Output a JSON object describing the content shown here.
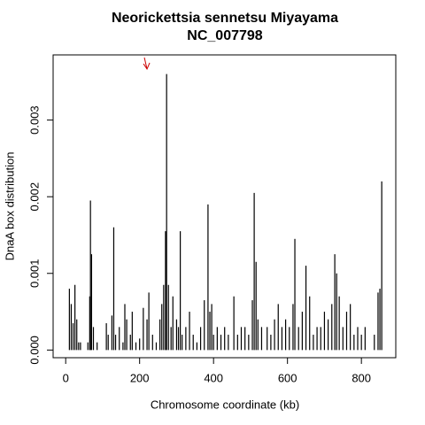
{
  "chart_data": {
    "type": "spike",
    "title": "Neorickettsia sennetsu Miyayama",
    "subtitle": "NC_007798",
    "x_label": "Chromosome coordinate (kb)",
    "y_label": "DnaA box distribution",
    "color": "#000000",
    "xlim": [
      -34,
      893
    ],
    "ylim": [
      -0.0001,
      0.00385
    ],
    "xticks": [
      0,
      200,
      400,
      600,
      800
    ],
    "yticks": [
      {
        "value": 0,
        "label": "0.000"
      },
      {
        "value": 0.001,
        "label": "0.001"
      },
      {
        "value": 0.002,
        "label": "0.002"
      },
      {
        "value": 0.003,
        "label": "0.003"
      }
    ],
    "annotations": [
      {
        "x": 220,
        "y": 0.0037,
        "color": "#cc0000"
      }
    ],
    "x": [
      10,
      15,
      20,
      25,
      30,
      35,
      40,
      60,
      65,
      67,
      70,
      75,
      85,
      110,
      115,
      125,
      130,
      135,
      145,
      155,
      160,
      165,
      175,
      180,
      190,
      200,
      210,
      220,
      225,
      235,
      245,
      255,
      260,
      265,
      270,
      273,
      278,
      285,
      290,
      300,
      305,
      310,
      315,
      325,
      335,
      345,
      355,
      365,
      375,
      385,
      390,
      395,
      400,
      410,
      420,
      430,
      440,
      455,
      465,
      475,
      485,
      495,
      505,
      510,
      515,
      520,
      530,
      545,
      555,
      565,
      575,
      585,
      595,
      605,
      615,
      620,
      630,
      640,
      650,
      660,
      670,
      680,
      690,
      700,
      710,
      720,
      728,
      733,
      740,
      750,
      760,
      770,
      780,
      790,
      800,
      810,
      835,
      845,
      850,
      855
    ],
    "values": [
      0.0008,
      0.0006,
      0.00035,
      0.00085,
      0.0004,
      0.0001,
      0.0001,
      0.0001,
      0.0007,
      0.00195,
      0.00125,
      0.0003,
      0.0001,
      0.00035,
      0.0002,
      0.00045,
      0.0016,
      0.0002,
      0.0003,
      0.0001,
      0.0006,
      0.0004,
      0.0002,
      0.0005,
      0.0001,
      0.00015,
      0.00055,
      0.0004,
      0.00075,
      0.0002,
      0.0001,
      0.0004,
      0.0006,
      0.00085,
      0.00155,
      0.0036,
      0.00085,
      0.0003,
      0.0007,
      0.0004,
      0.0003,
      0.00155,
      0.0002,
      0.0003,
      0.0005,
      0.0002,
      0.0001,
      0.0003,
      0.00065,
      0.0019,
      0.0005,
      0.0006,
      0.0002,
      0.0003,
      0.0002,
      0.0003,
      0.0002,
      0.0007,
      0.0002,
      0.0003,
      0.0003,
      0.0002,
      0.00065,
      0.00205,
      0.00115,
      0.0004,
      0.0003,
      0.0003,
      0.0002,
      0.0004,
      0.0006,
      0.0003,
      0.0004,
      0.0003,
      0.0006,
      0.00145,
      0.0003,
      0.0005,
      0.0011,
      0.0007,
      0.0002,
      0.0003,
      0.0003,
      0.0005,
      0.0004,
      0.0006,
      0.00125,
      0.001,
      0.0007,
      0.0003,
      0.0005,
      0.0006,
      0.0002,
      0.0003,
      0.0002,
      0.0003,
      0.0002,
      0.00075,
      0.0008,
      0.0022
    ]
  }
}
